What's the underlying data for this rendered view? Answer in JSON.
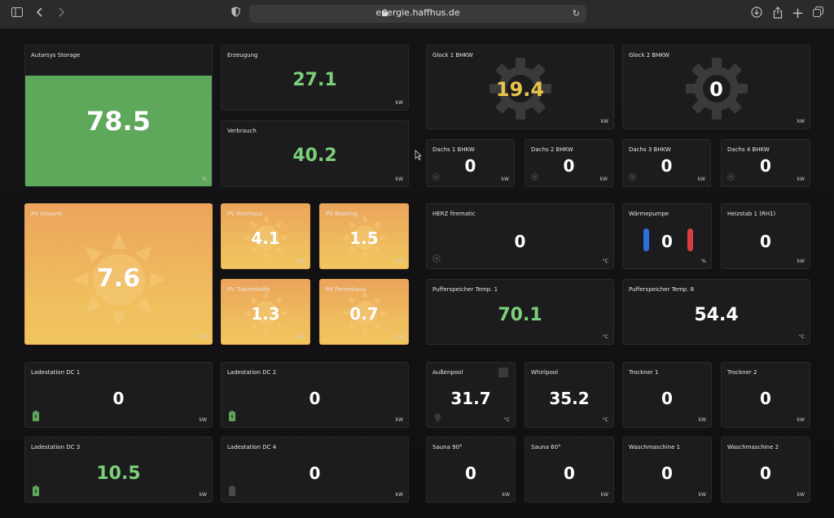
{
  "browser": {
    "url": "energie.haffhus.de"
  },
  "tiles": {
    "autarsys": {
      "title": "Autarsys Storage",
      "value": "78.5",
      "unit": "%"
    },
    "erzeugung": {
      "title": "Erzeugung",
      "value": "27.1",
      "unit": "kW"
    },
    "verbrauch": {
      "title": "Verbrauch",
      "value": "40.2",
      "unit": "kW"
    },
    "glock1": {
      "title": "Glock 1 BHKW",
      "value": "19.4",
      "unit": "kW"
    },
    "glock2": {
      "title": "Glock 2 BHKW",
      "value": "0",
      "unit": "kW"
    },
    "dachs1": {
      "title": "Dachs 1 BHKW",
      "value": "0",
      "unit": "kW"
    },
    "dachs2": {
      "title": "Dachs 2 BHKW",
      "value": "0",
      "unit": "kW"
    },
    "dachs3": {
      "title": "Dachs 3 BHKW",
      "value": "0",
      "unit": "kW"
    },
    "dachs4": {
      "title": "Dachs 4 BHKW",
      "value": "0",
      "unit": "kW"
    },
    "pvGesamt": {
      "title": "PV Gesamt",
      "value": "7.6",
      "unit": "kW"
    },
    "pvHeizhaus": {
      "title": "PV Heizhaus",
      "value": "4.1",
      "unit": "kW"
    },
    "pvBowling": {
      "title": "PV Bowling",
      "value": "1.5",
      "unit": "kW"
    },
    "pvTraktorhalle": {
      "title": "PV Traktorhalle",
      "value": "1.3",
      "unit": "kW"
    },
    "pvFerienhaus": {
      "title": "PV Ferienhaus",
      "value": "0.7",
      "unit": "kW"
    },
    "herz": {
      "title": "HERZ firematic",
      "value": "0",
      "unit": "°C"
    },
    "waermepumpe": {
      "title": "Wärmepumpe",
      "value": "0",
      "unit": "%"
    },
    "heizstab": {
      "title": "Heizstab 1 (RH1)",
      "value": "0",
      "unit": "kW"
    },
    "puffer1": {
      "title": "Pufferspeicher Temp. 1",
      "value": "70.1",
      "unit": "°C"
    },
    "puffer8": {
      "title": "Pufferspeicher Temp. 8",
      "value": "54.4",
      "unit": "°C"
    },
    "lade1": {
      "title": "Ladestation DC 1",
      "value": "0",
      "unit": "kW"
    },
    "lade2": {
      "title": "Ladestation DC 2",
      "value": "0",
      "unit": "kW"
    },
    "lade3": {
      "title": "Ladestation DC 3",
      "value": "10.5",
      "unit": "kW"
    },
    "lade4": {
      "title": "Ladestation DC 4",
      "value": "0",
      "unit": "kW"
    },
    "aussenpool": {
      "title": "Außenpool",
      "value": "31.7",
      "unit": "°C"
    },
    "whirlpool": {
      "title": "Whirlpool",
      "value": "35.2",
      "unit": "°C"
    },
    "trockner1": {
      "title": "Trockner 1",
      "value": "0",
      "unit": "kW"
    },
    "trockner2": {
      "title": "Trockner 2",
      "value": "0",
      "unit": "kW"
    },
    "sauna90": {
      "title": "Sauna 90°",
      "value": "0",
      "unit": "kW"
    },
    "sauna60": {
      "title": "Sauna 60°",
      "value": "0",
      "unit": "kW"
    },
    "wasch1": {
      "title": "Waschmaschine 1",
      "value": "0",
      "unit": "kW"
    },
    "wasch2": {
      "title": "Waschmaschine 2",
      "value": "0",
      "unit": "kW"
    }
  },
  "colors": {
    "accent_green": "#7cd07a",
    "accent_yellow": "#e9c54a",
    "storage_green": "#5ea85b",
    "sun_orange": "#eca45c"
  }
}
